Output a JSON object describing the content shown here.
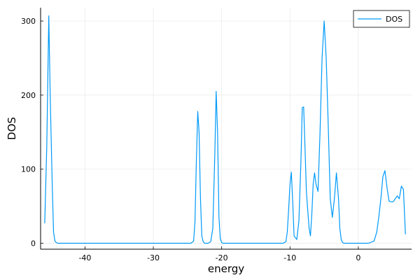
{
  "chart_data": {
    "type": "line",
    "title": "",
    "xlabel": "energy",
    "ylabel": "DOS",
    "xlim": [
      -46.5,
      7.8
    ],
    "ylim": [
      -8,
      318
    ],
    "xticks": [
      -40,
      -30,
      -20,
      -10,
      0
    ],
    "yticks": [
      0,
      100,
      200,
      300
    ],
    "grid": true,
    "legend_position": "top-right",
    "series": [
      {
        "name": "DOS",
        "color": "#009af9",
        "x": [
          -45.9,
          -45.6,
          -45.3,
          -45.1,
          -44.8,
          -44.6,
          -44.4,
          -44.2,
          -44.0,
          -43.5,
          -43.0,
          -40.0,
          -35.0,
          -30.0,
          -25.0,
          -24.5,
          -24.1,
          -23.9,
          -23.7,
          -23.5,
          -23.3,
          -23.1,
          -22.9,
          -22.7,
          -22.5,
          -22.3,
          -22.0,
          -21.6,
          -21.3,
          -21.0,
          -20.8,
          -20.6,
          -20.4,
          -20.2,
          -20.0,
          -19.8,
          -19.6,
          -19.2,
          -18.5,
          -15.0,
          -12.0,
          -11.0,
          -10.6,
          -10.4,
          -10.2,
          -10.0,
          -9.8,
          -9.6,
          -9.4,
          -9.0,
          -8.7,
          -8.4,
          -8.2,
          -8.0,
          -7.8,
          -7.6,
          -7.4,
          -7.2,
          -7.0,
          -6.8,
          -6.6,
          -6.4,
          -6.2,
          -5.9,
          -5.6,
          -5.3,
          -5.0,
          -4.7,
          -4.4,
          -4.1,
          -3.8,
          -3.5,
          -3.2,
          -2.9,
          -2.7,
          -2.5,
          -2.3,
          -2.1,
          -1.9,
          -1.7,
          -1.5,
          -1.2,
          -0.8,
          -0.3,
          0.5,
          1.5,
          2.3,
          2.7,
          3.0,
          3.3,
          3.6,
          3.9,
          4.2,
          4.5,
          4.8,
          5.1,
          5.4,
          5.7,
          6.0,
          6.3,
          6.6,
          6.9
        ],
        "y": [
          27,
          130,
          307,
          200,
          80,
          15,
          3,
          1,
          0,
          0,
          0,
          0,
          0,
          0,
          0,
          0,
          3,
          30,
          110,
          178,
          150,
          60,
          10,
          2,
          0,
          0,
          0,
          2,
          20,
          120,
          205,
          150,
          35,
          6,
          1,
          0,
          0,
          0,
          0,
          0,
          0,
          0,
          2,
          15,
          45,
          80,
          96,
          55,
          10,
          5,
          30,
          110,
          183,
          184,
          130,
          70,
          45,
          20,
          10,
          40,
          80,
          95,
          80,
          70,
          150,
          250,
          300,
          250,
          160,
          60,
          35,
          60,
          95,
          60,
          20,
          5,
          1,
          0,
          0,
          0,
          0,
          0,
          0,
          0,
          0,
          0,
          3,
          15,
          35,
          60,
          90,
          98,
          75,
          57,
          56,
          56,
          60,
          64,
          60,
          77,
          73,
          12
        ]
      }
    ]
  }
}
